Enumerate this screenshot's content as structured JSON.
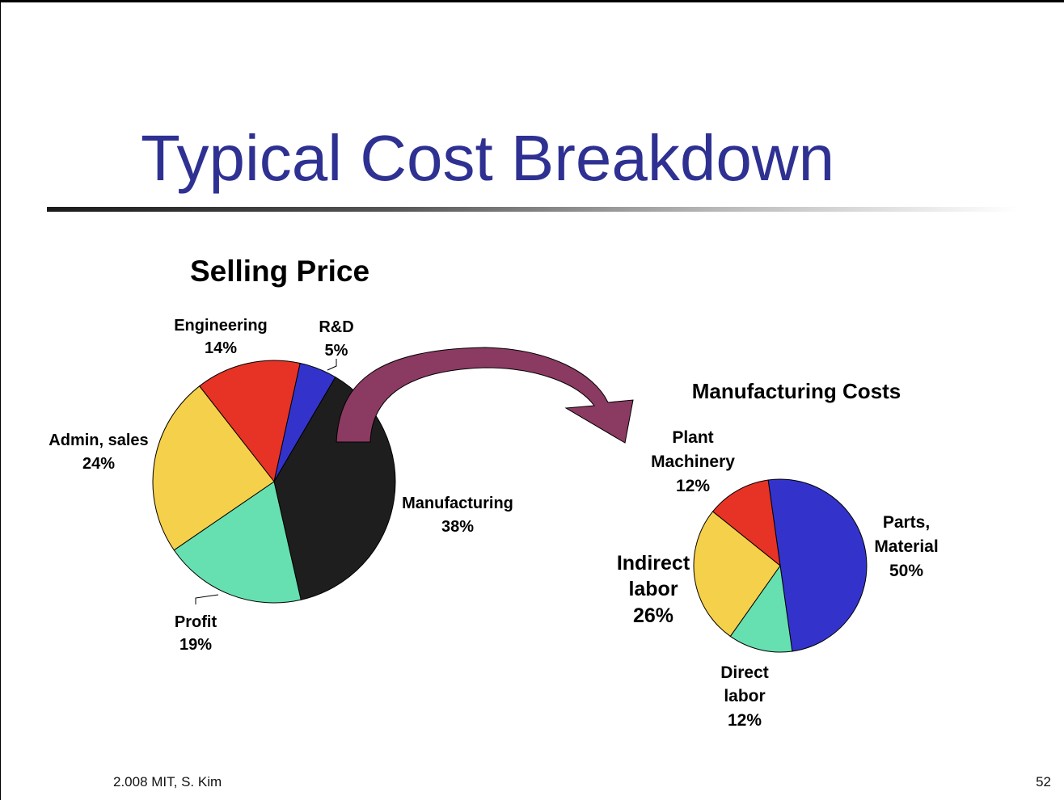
{
  "slide": {
    "title": "Typical Cost Breakdown",
    "footer_left": "2.008 MIT, S. Kim",
    "page_number": "52"
  },
  "chart_data": [
    {
      "type": "pie",
      "title": "Selling Price",
      "slices": [
        {
          "label": "Engineering",
          "value": 14,
          "pct_text": "14%",
          "color": "#e63325"
        },
        {
          "label": "R&D",
          "value": 5,
          "pct_text": "5%",
          "color": "#3333cc"
        },
        {
          "label": "Manufacturing",
          "value": 38,
          "pct_text": "38%",
          "color": "#1e1e1e"
        },
        {
          "label": "Profit",
          "value": 19,
          "pct_text": "19%",
          "color": "#66e0b0"
        },
        {
          "label": "Admin, sales",
          "value": 24,
          "pct_text": "24%",
          "color": "#f5d04a"
        }
      ]
    },
    {
      "type": "pie",
      "title": "Manufacturing Costs",
      "slices": [
        {
          "label": "Parts, Material",
          "label_lines": [
            "Parts,",
            "Material"
          ],
          "value": 50,
          "pct_text": "50%",
          "color": "#3333cc"
        },
        {
          "label": "Direct labor",
          "label_lines": [
            "Direct",
            "labor"
          ],
          "value": 12,
          "pct_text": "12%",
          "color": "#66e0b0"
        },
        {
          "label": "Indirect labor",
          "label_lines": [
            "Indirect",
            "labor"
          ],
          "value": 26,
          "pct_text": "26%",
          "color": "#f5d04a"
        },
        {
          "label": "Plant Machinery",
          "label_lines": [
            "Plant",
            "Machinery"
          ],
          "value": 12,
          "pct_text": "12%",
          "color": "#e63325"
        }
      ]
    }
  ],
  "arrow": {
    "color": "#8b3a62"
  }
}
